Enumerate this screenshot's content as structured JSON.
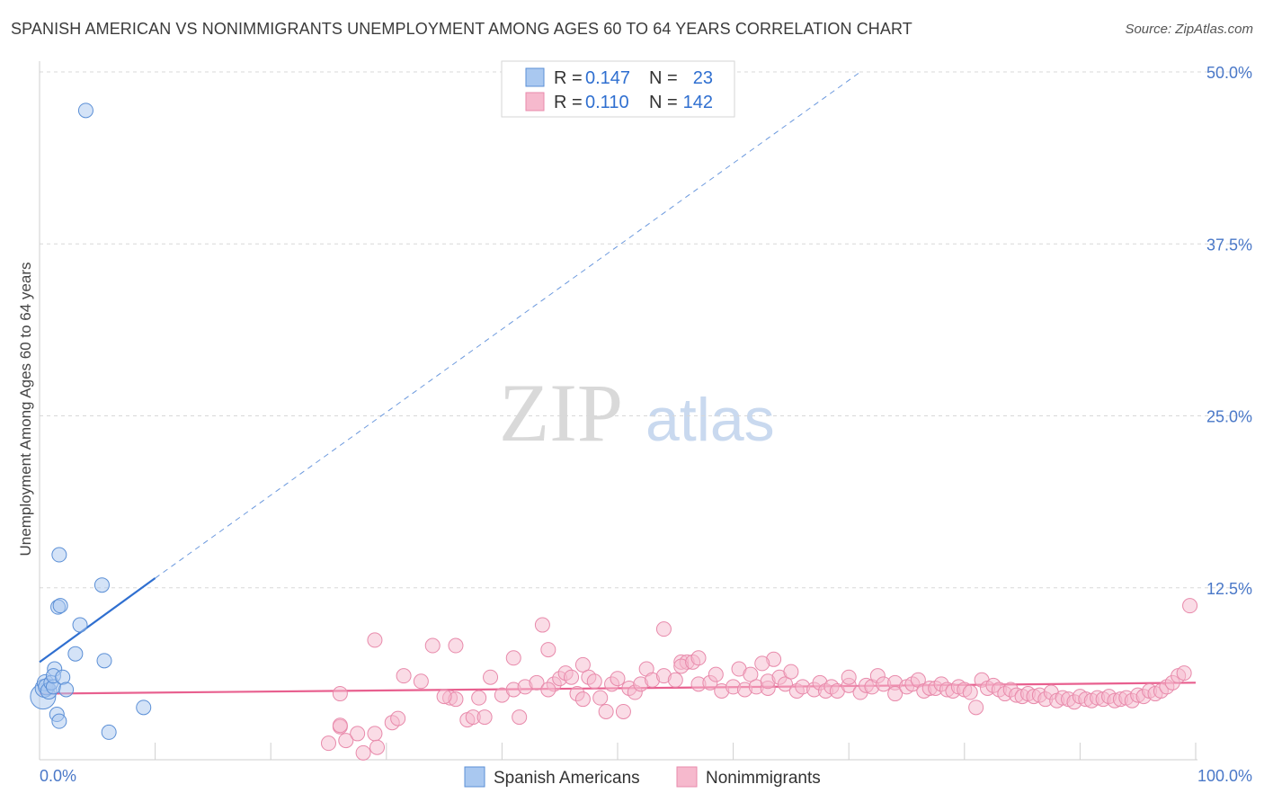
{
  "title": "SPANISH AMERICAN VS NONIMMIGRANTS UNEMPLOYMENT AMONG AGES 60 TO 64 YEARS CORRELATION CHART",
  "source": "Source: ZipAtlas.com",
  "watermark": {
    "zip": "ZIP",
    "atlas": "atlas"
  },
  "colors": {
    "blue_fill": "#a9c8f0",
    "blue_stroke": "#5b8fd6",
    "blue_line": "#2f6fd0",
    "pink_fill": "#f6b9cd",
    "pink_stroke": "#e88aab",
    "pink_line": "#e8608f",
    "grid": "#d8d8d8",
    "axis_text": "#4a78c8"
  },
  "legend_top": {
    "rows": [
      {
        "r_label": "R =",
        "r_value": "0.147",
        "n_label": "N =",
        "n_value": "23",
        "series": "blue"
      },
      {
        "r_label": "R =",
        "r_value": "0.110",
        "n_label": "N =",
        "n_value": "142",
        "series": "pink"
      }
    ]
  },
  "legend_bottom": [
    "Spanish Americans",
    "Nonimmigrants"
  ],
  "chart_data": {
    "type": "scatter",
    "title": "SPANISH AMERICAN VS NONIMMIGRANTS UNEMPLOYMENT AMONG AGES 60 TO 64 YEARS CORRELATION CHART",
    "xlabel": "",
    "ylabel": "Unemployment Among Ages 60 to 64 years",
    "xlim": [
      0,
      100
    ],
    "ylim": [
      0,
      50
    ],
    "x_tick_labels": [
      "0.0%",
      "100.0%"
    ],
    "y_ticks": [
      12.5,
      25.0,
      37.5,
      50.0
    ],
    "y_tick_labels": [
      "12.5%",
      "25.0%",
      "37.5%",
      "50.0%"
    ],
    "series": [
      {
        "name": "Spanish Americans",
        "color": "blue",
        "trend": {
          "x0": 0,
          "y0": 7.1,
          "x1": 10,
          "y1": 13.2,
          "dashed_to_x": 71,
          "dashed_to_y": 50.0
        },
        "points": [
          [
            0.3,
            4.6,
            14
          ],
          [
            0.4,
            5.2,
            10
          ],
          [
            0.5,
            5.6,
            9
          ],
          [
            0.6,
            5.3,
            9
          ],
          [
            0.8,
            5.0,
            9
          ],
          [
            1.0,
            5.6,
            8
          ],
          [
            1.2,
            5.3,
            8
          ],
          [
            1.3,
            6.6,
            8
          ],
          [
            1.2,
            6.1,
            8
          ],
          [
            1.5,
            3.3,
            8
          ],
          [
            1.7,
            2.8,
            8
          ],
          [
            1.6,
            11.1,
            8
          ],
          [
            1.7,
            14.9,
            8
          ],
          [
            1.8,
            11.2,
            8
          ],
          [
            2.0,
            6.0,
            8
          ],
          [
            2.3,
            5.1,
            8
          ],
          [
            3.1,
            7.7,
            8
          ],
          [
            3.5,
            9.8,
            8
          ],
          [
            4.0,
            47.2,
            8
          ],
          [
            5.4,
            12.7,
            8
          ],
          [
            5.6,
            7.2,
            8
          ],
          [
            6.0,
            2.0,
            8
          ],
          [
            9.0,
            3.8,
            8
          ]
        ]
      },
      {
        "name": "Nonimmigrants",
        "color": "pink",
        "trend": {
          "x0": 0,
          "y0": 4.8,
          "x1": 100,
          "y1": 5.6
        },
        "points": [
          [
            26,
            2.4
          ],
          [
            25,
            1.2
          ],
          [
            26,
            2.5
          ],
          [
            26.5,
            1.4
          ],
          [
            27.5,
            1.9
          ],
          [
            26,
            4.8
          ],
          [
            28,
            0.5
          ],
          [
            29,
            1.9
          ],
          [
            29.2,
            0.9
          ],
          [
            30.5,
            2.7
          ],
          [
            31,
            3.0
          ],
          [
            29,
            8.7
          ],
          [
            31.5,
            6.1
          ],
          [
            33,
            5.7
          ],
          [
            34,
            8.3
          ],
          [
            35.5,
            4.5
          ],
          [
            36,
            4.4
          ],
          [
            35,
            4.6
          ],
          [
            36,
            8.3
          ],
          [
            37,
            2.9
          ],
          [
            37.5,
            3.1
          ],
          [
            38,
            4.5
          ],
          [
            38.5,
            3.1
          ],
          [
            39,
            6.0
          ],
          [
            40,
            4.7
          ],
          [
            41,
            7.4
          ],
          [
            41,
            5.1
          ],
          [
            41.5,
            3.1
          ],
          [
            42,
            5.3
          ],
          [
            43,
            5.6
          ],
          [
            43.5,
            9.8
          ],
          [
            44,
            8.0
          ],
          [
            44.5,
            5.5
          ],
          [
            45,
            5.9
          ],
          [
            45.5,
            6.3
          ],
          [
            46,
            6.0
          ],
          [
            47,
            6.9
          ],
          [
            46.5,
            4.8
          ],
          [
            47.5,
            6.0
          ],
          [
            48,
            5.7
          ],
          [
            48.5,
            4.5
          ],
          [
            49,
            3.5
          ],
          [
            49.5,
            5.5
          ],
          [
            50,
            5.9
          ],
          [
            50.5,
            3.5
          ],
          [
            51,
            5.2
          ],
          [
            51.5,
            4.9
          ],
          [
            52,
            5.5
          ],
          [
            52.5,
            6.6
          ],
          [
            53,
            5.8
          ],
          [
            54,
            9.5
          ],
          [
            54,
            6.1
          ],
          [
            55,
            5.8
          ],
          [
            55.5,
            7.1
          ],
          [
            56,
            7.1
          ],
          [
            55.5,
            6.8
          ],
          [
            56.5,
            7.1
          ],
          [
            57,
            5.5
          ],
          [
            58,
            5.6
          ],
          [
            58.5,
            6.2
          ],
          [
            59,
            5.0
          ],
          [
            60,
            5.3
          ],
          [
            60.5,
            6.6
          ],
          [
            61,
            5.1
          ],
          [
            61.5,
            6.2
          ],
          [
            62,
            5.3
          ],
          [
            63,
            5.2
          ],
          [
            63,
            5.7
          ],
          [
            63.5,
            7.3
          ],
          [
            64,
            6.0
          ],
          [
            64.5,
            5.5
          ],
          [
            65,
            6.4
          ],
          [
            65.5,
            5.0
          ],
          [
            66,
            5.3
          ],
          [
            67,
            5.1
          ],
          [
            67.5,
            5.6
          ],
          [
            68,
            5.0
          ],
          [
            68.5,
            5.3
          ],
          [
            69,
            5.0
          ],
          [
            70,
            5.4
          ],
          [
            70,
            6.0
          ],
          [
            71,
            4.9
          ],
          [
            71.5,
            5.4
          ],
          [
            72,
            5.3
          ],
          [
            72.5,
            6.1
          ],
          [
            73,
            5.5
          ],
          [
            74,
            5.6
          ],
          [
            74,
            4.8
          ],
          [
            75,
            5.3
          ],
          [
            75.5,
            5.5
          ],
          [
            76,
            5.8
          ],
          [
            76.5,
            5.0
          ],
          [
            77,
            5.2
          ],
          [
            77.5,
            5.2
          ],
          [
            78,
            5.5
          ],
          [
            78.5,
            5.1
          ],
          [
            79,
            5.0
          ],
          [
            79.5,
            5.3
          ],
          [
            80,
            5.1
          ],
          [
            80.5,
            4.9
          ],
          [
            81,
            3.8
          ],
          [
            81.5,
            5.8
          ],
          [
            82,
            5.2
          ],
          [
            82.5,
            5.4
          ],
          [
            83,
            5.1
          ],
          [
            83.5,
            4.8
          ],
          [
            84,
            5.1
          ],
          [
            84.5,
            4.7
          ],
          [
            85,
            4.6
          ],
          [
            85.5,
            4.8
          ],
          [
            86,
            4.6
          ],
          [
            86.5,
            4.7
          ],
          [
            87,
            4.4
          ],
          [
            87.5,
            4.9
          ],
          [
            88,
            4.3
          ],
          [
            88.5,
            4.5
          ],
          [
            89,
            4.4
          ],
          [
            89.5,
            4.2
          ],
          [
            90,
            4.6
          ],
          [
            90.5,
            4.4
          ],
          [
            91,
            4.3
          ],
          [
            91.5,
            4.5
          ],
          [
            92,
            4.4
          ],
          [
            92.5,
            4.6
          ],
          [
            93,
            4.3
          ],
          [
            93.5,
            4.4
          ],
          [
            94,
            4.5
          ],
          [
            94.5,
            4.3
          ],
          [
            95,
            4.7
          ],
          [
            95.5,
            4.6
          ],
          [
            96,
            5.0
          ],
          [
            96.5,
            4.8
          ],
          [
            97,
            5.0
          ],
          [
            97.5,
            5.3
          ],
          [
            98,
            5.6
          ],
          [
            98.5,
            6.1
          ],
          [
            99,
            6.3
          ],
          [
            99.5,
            11.2
          ],
          [
            62.5,
            7.0
          ],
          [
            44,
            5.1
          ],
          [
            47,
            4.4
          ],
          [
            57,
            7.4
          ]
        ]
      }
    ]
  }
}
